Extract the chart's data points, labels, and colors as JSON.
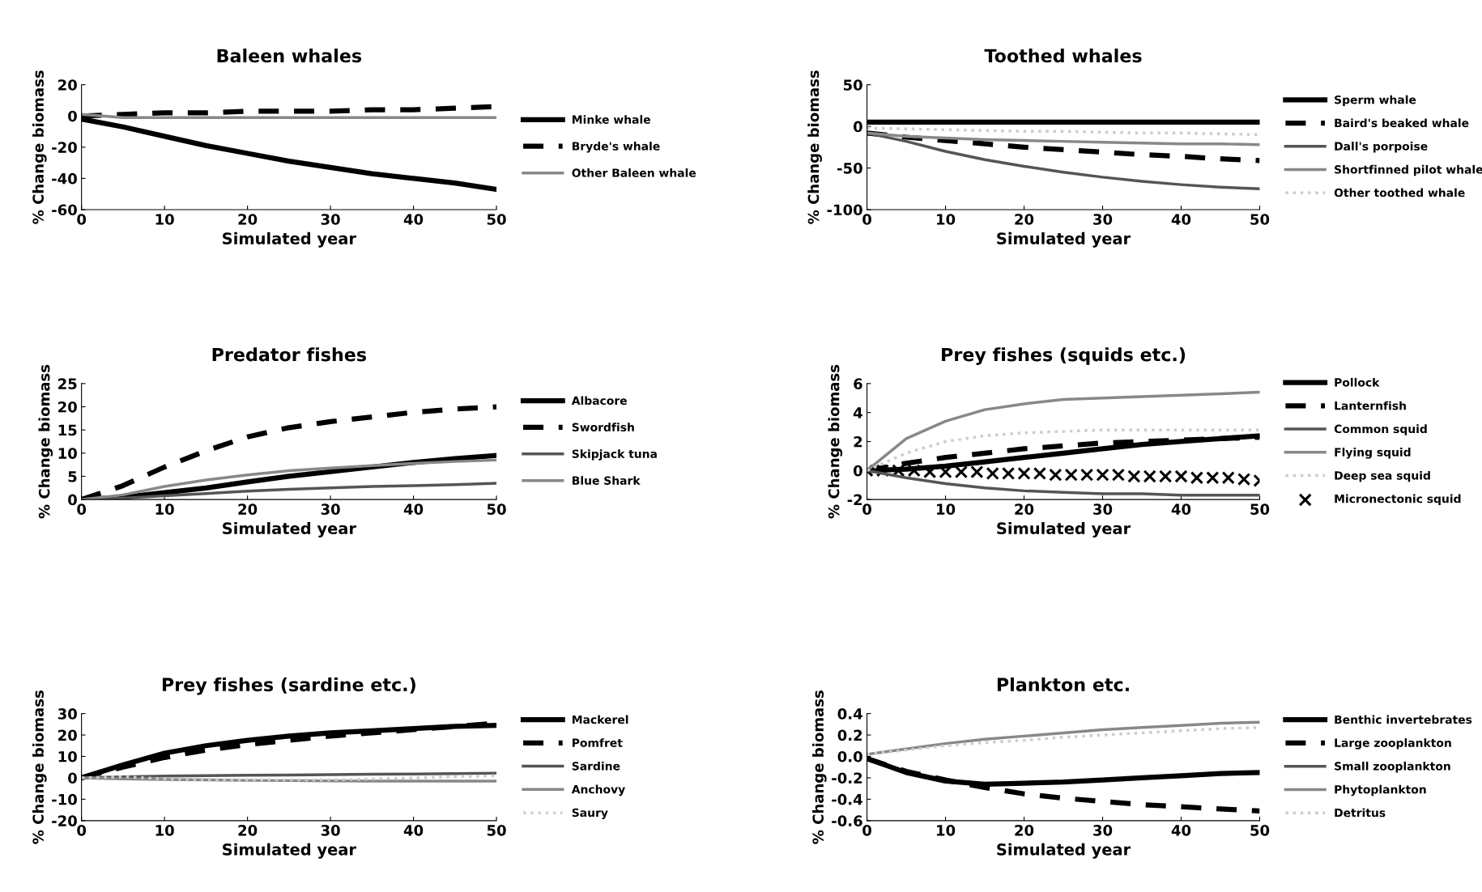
{
  "chart_data": [
    {
      "type": "line",
      "title": "Baleen whales",
      "xlabel": "Simulated year",
      "ylabel": "% Change biomass",
      "x": [
        0,
        5,
        10,
        15,
        20,
        25,
        30,
        35,
        40,
        45,
        50
      ],
      "xlim": [
        0,
        50
      ],
      "xticks": [
        0,
        10,
        20,
        30,
        40,
        50
      ],
      "ylim": [
        -60,
        20
      ],
      "yticks": [
        -60,
        -40,
        -20,
        0,
        20
      ],
      "legend": "right",
      "series": [
        {
          "name": "Minke whale",
          "color": "#000000",
          "line_style": "solid",
          "values": [
            -2,
            -7,
            -13,
            -19,
            -24,
            -29,
            -33,
            -37,
            -40,
            -43,
            -47
          ]
        },
        {
          "name": "Bryde's whale",
          "color": "#000000",
          "line_style": "dashed",
          "values": [
            0,
            1,
            2,
            2,
            3,
            3,
            3,
            4,
            4,
            5,
            6
          ]
        },
        {
          "name": "Other Baleen whale",
          "color": "#888888",
          "line_style": "solid",
          "values": [
            1,
            -1,
            -1,
            -1,
            -1,
            -1,
            -1,
            -1,
            -1,
            -1,
            -1
          ]
        }
      ]
    },
    {
      "type": "line",
      "title": "Toothed whales",
      "xlabel": "Simulated year",
      "ylabel": "% Change biomass",
      "x": [
        0,
        5,
        10,
        15,
        20,
        25,
        30,
        35,
        40,
        45,
        50
      ],
      "xlim": [
        0,
        50
      ],
      "xticks": [
        0,
        10,
        20,
        30,
        40,
        50
      ],
      "ylim": [
        -100,
        50
      ],
      "yticks": [
        -100,
        -50,
        0,
        50
      ],
      "legend": "right",
      "series": [
        {
          "name": "Sperm whale",
          "color": "#000000",
          "line_style": "solid",
          "values": [
            5,
            5,
            5,
            5,
            5,
            5,
            5,
            5,
            5,
            5,
            5
          ]
        },
        {
          "name": "Baird's beaked whale",
          "color": "#000000",
          "line_style": "dashed",
          "values": [
            -8,
            -13,
            -17,
            -21,
            -25,
            -28,
            -31,
            -34,
            -36,
            -39,
            -41
          ]
        },
        {
          "name": "Dall's porpoise",
          "color": "#555555",
          "line_style": "solid",
          "values": [
            -8,
            -18,
            -30,
            -40,
            -48,
            -55,
            -61,
            -66,
            -70,
            -73,
            -75
          ]
        },
        {
          "name": "Shortfinned pilot whale",
          "color": "#888888",
          "line_style": "solid",
          "values": [
            -8,
            -12,
            -14,
            -16,
            -17,
            -18,
            -19,
            -20,
            -21,
            -21,
            -22
          ]
        },
        {
          "name": "Other toothed whale",
          "color": "#cccccc",
          "line_style": "dotted",
          "values": [
            -2,
            -3,
            -4,
            -5,
            -6,
            -6,
            -7,
            -8,
            -8,
            -9,
            -10
          ]
        }
      ]
    },
    {
      "type": "line",
      "title": "Predator fishes",
      "xlabel": "Simulated year",
      "ylabel": "% Change biomass",
      "x": [
        0,
        5,
        10,
        15,
        20,
        25,
        30,
        35,
        40,
        45,
        50
      ],
      "xlim": [
        0,
        50
      ],
      "xticks": [
        0,
        10,
        20,
        30,
        40,
        50
      ],
      "ylim": [
        0,
        25
      ],
      "yticks": [
        0,
        5,
        10,
        15,
        20,
        25
      ],
      "legend": "right",
      "series": [
        {
          "name": "Albacore",
          "color": "#000000",
          "line_style": "solid",
          "values": [
            0,
            0.5,
            1.5,
            2.5,
            3.8,
            5,
            6,
            7,
            8,
            8.8,
            9.5
          ]
        },
        {
          "name": "Swordfish",
          "color": "#000000",
          "line_style": "dashed",
          "values": [
            0,
            3,
            7,
            10.5,
            13.5,
            15.5,
            16.8,
            17.8,
            18.8,
            19.5,
            20
          ]
        },
        {
          "name": "Skipjack tuna",
          "color": "#555555",
          "line_style": "solid",
          "values": [
            0,
            0.3,
            0.8,
            1.3,
            1.8,
            2.2,
            2.5,
            2.8,
            3,
            3.2,
            3.5
          ]
        },
        {
          "name": "Blue Shark",
          "color": "#888888",
          "line_style": "solid",
          "values": [
            0,
            1,
            2.8,
            4.2,
            5.3,
            6.2,
            6.8,
            7.3,
            7.8,
            8.2,
            8.5
          ]
        }
      ]
    },
    {
      "type": "line",
      "title": "Prey fishes (squids etc.)",
      "xlabel": "Simulated year",
      "ylabel": "% Change biomass",
      "x": [
        0,
        5,
        10,
        15,
        20,
        25,
        30,
        35,
        40,
        45,
        50
      ],
      "xlim": [
        0,
        50
      ],
      "xticks": [
        0,
        10,
        20,
        30,
        40,
        50
      ],
      "ylim": [
        -2,
        6
      ],
      "yticks": [
        -2,
        0,
        2,
        4,
        6
      ],
      "legend": "right",
      "series": [
        {
          "name": "Pollock",
          "color": "#000000",
          "line_style": "solid",
          "values": [
            0,
            0.1,
            0.3,
            0.6,
            0.9,
            1.2,
            1.5,
            1.8,
            2.0,
            2.2,
            2.4
          ]
        },
        {
          "name": "Lanternfish",
          "color": "#000000",
          "line_style": "dashed",
          "values": [
            0,
            0.5,
            0.9,
            1.2,
            1.5,
            1.7,
            1.9,
            2.0,
            2.1,
            2.2,
            2.3
          ]
        },
        {
          "name": "Common squid",
          "color": "#555555",
          "line_style": "solid",
          "values": [
            0,
            -0.5,
            -0.9,
            -1.2,
            -1.4,
            -1.5,
            -1.6,
            -1.6,
            -1.7,
            -1.7,
            -1.7
          ]
        },
        {
          "name": "Flying squid",
          "color": "#888888",
          "line_style": "solid",
          "values": [
            0,
            2.2,
            3.4,
            4.2,
            4.6,
            4.9,
            5.0,
            5.1,
            5.2,
            5.3,
            5.4
          ]
        },
        {
          "name": "Deep sea squid",
          "color": "#cccccc",
          "line_style": "dotted",
          "values": [
            0,
            1.2,
            2.0,
            2.4,
            2.6,
            2.7,
            2.8,
            2.8,
            2.8,
            2.8,
            2.8
          ]
        },
        {
          "name": "Micronectonic squid",
          "type": "scatter",
          "marker": "cross",
          "color": "#000000",
          "x": [
            0,
            2,
            4,
            6,
            8,
            10,
            12,
            14,
            16,
            18,
            20,
            22,
            24,
            26,
            28,
            30,
            32,
            34,
            36,
            38,
            40,
            42,
            44,
            46,
            48,
            50
          ],
          "values": [
            0,
            0,
            0,
            0,
            -0.1,
            -0.1,
            -0.1,
            -0.1,
            -0.2,
            -0.2,
            -0.2,
            -0.2,
            -0.3,
            -0.3,
            -0.3,
            -0.3,
            -0.3,
            -0.4,
            -0.4,
            -0.4,
            -0.4,
            -0.5,
            -0.5,
            -0.5,
            -0.6,
            -0.7
          ]
        }
      ]
    },
    {
      "type": "line",
      "title": "Prey fishes (sardine etc.)",
      "xlabel": "Simulated year",
      "ylabel": "% Change biomass",
      "x": [
        0,
        5,
        10,
        15,
        20,
        25,
        30,
        35,
        40,
        45,
        50
      ],
      "xlim": [
        0,
        50
      ],
      "xticks": [
        0,
        10,
        20,
        30,
        40,
        50
      ],
      "ylim": [
        -20,
        30
      ],
      "yticks": [
        -20,
        -10,
        0,
        10,
        20,
        30
      ],
      "legend": "right",
      "series": [
        {
          "name": "Mackerel",
          "color": "#000000",
          "line_style": "solid",
          "values": [
            0,
            6,
            11.5,
            15,
            17.5,
            19.5,
            21,
            22,
            23,
            24,
            24.5
          ]
        },
        {
          "name": "Pomfret",
          "color": "#000000",
          "line_style": "dashed",
          "values": [
            0,
            5,
            9.5,
            13,
            15.5,
            17.5,
            19.5,
            21,
            22.5,
            24,
            25.5
          ]
        },
        {
          "name": "Sardine",
          "color": "#555555",
          "line_style": "solid",
          "values": [
            0,
            0.5,
            0.8,
            1,
            1.2,
            1.3,
            1.5,
            1.7,
            1.8,
            2,
            2.2
          ]
        },
        {
          "name": "Anchovy",
          "color": "#888888",
          "line_style": "solid",
          "values": [
            0,
            -0.5,
            -0.8,
            -1,
            -1.2,
            -1.3,
            -1.4,
            -1.5,
            -1.5,
            -1.5,
            -1.5
          ]
        },
        {
          "name": "Saury",
          "color": "#cccccc",
          "line_style": "dotted",
          "values": [
            0,
            0.5,
            -0.5,
            -0.8,
            -1,
            -1,
            -1,
            -0.5,
            0,
            0.5,
            1
          ]
        }
      ]
    },
    {
      "type": "line",
      "title": "Plankton etc.",
      "xlabel": "Simulated year",
      "ylabel": "% Change biomass",
      "x": [
        0,
        5,
        10,
        15,
        20,
        25,
        30,
        35,
        40,
        45,
        50
      ],
      "xlim": [
        0,
        50
      ],
      "xticks": [
        0,
        10,
        20,
        30,
        40,
        50
      ],
      "ylim": [
        -0.6,
        0.4
      ],
      "yticks": [
        -0.6,
        -0.4,
        -0.2,
        {
          "value": 0,
          "label": "0.0"
        },
        0.2,
        0.4
      ],
      "legend": "right",
      "series": [
        {
          "name": "Benthic invertebrates",
          "color": "#000000",
          "line_style": "solid",
          "values": [
            -0.02,
            -0.15,
            -0.23,
            -0.26,
            -0.25,
            -0.24,
            -0.22,
            -0.2,
            -0.18,
            -0.16,
            -0.15
          ]
        },
        {
          "name": "Large zooplankton",
          "color": "#000000",
          "line_style": "dashed",
          "values": [
            -0.02,
            -0.14,
            -0.22,
            -0.29,
            -0.35,
            -0.39,
            -0.42,
            -0.45,
            -0.47,
            -0.49,
            -0.51
          ]
        },
        {
          "name": "Small zooplankton",
          "color": "#555555",
          "line_style": "solid",
          "values": [
            null,
            null,
            null,
            null,
            null,
            null,
            null,
            null,
            null,
            null,
            null
          ]
        },
        {
          "name": "Phytoplankton",
          "color": "#888888",
          "line_style": "solid",
          "values": [
            0.02,
            0.07,
            0.12,
            0.16,
            0.19,
            0.22,
            0.25,
            0.27,
            0.29,
            0.31,
            0.32
          ]
        },
        {
          "name": "Detritus",
          "color": "#cccccc",
          "line_style": "dotted",
          "values": [
            0.02,
            0.06,
            0.1,
            0.13,
            0.15,
            0.18,
            0.2,
            0.22,
            0.24,
            0.26,
            0.27
          ]
        }
      ]
    }
  ]
}
